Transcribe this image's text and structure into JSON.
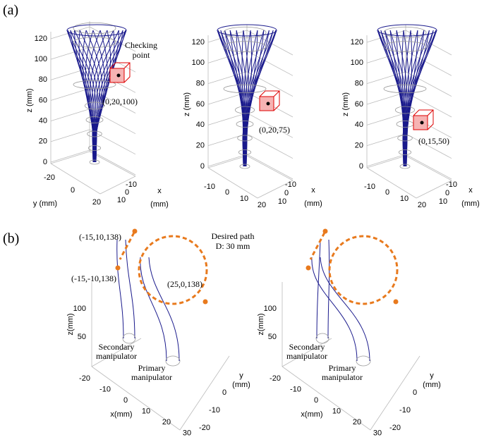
{
  "labels": {
    "a": "(a)",
    "b": "(b)"
  },
  "panel_a": [
    {
      "z_label": "z (mm)",
      "z_ticks": [
        "0",
        "20",
        "40",
        "60",
        "80",
        "100",
        "120"
      ],
      "y_label": "y (mm)",
      "y_ticks": [
        "-20",
        "0",
        "20"
      ],
      "x_label": "x",
      "x_unit": "(mm)",
      "x_ticks": [
        "-10",
        "0",
        "10"
      ],
      "note": [
        "Checking",
        "point"
      ],
      "point": "(0,20,100)"
    },
    {
      "z_label": "z (mm)",
      "z_ticks": [
        "0",
        "20",
        "40",
        "60",
        "80",
        "100",
        "120"
      ],
      "y_ticks": [
        "-10",
        "0",
        "10",
        "20"
      ],
      "x_label": "x",
      "x_unit": "(mm)",
      "x_ticks": [
        "-10",
        "0",
        "10"
      ],
      "point": "(0,20,75)"
    },
    {
      "z_label": "z (mm)",
      "z_ticks": [
        "0",
        "20",
        "40",
        "60",
        "80",
        "100",
        "120"
      ],
      "y_ticks": [
        "-10",
        "0",
        "10",
        "20"
      ],
      "x_label": "x",
      "x_unit": "(mm)",
      "x_ticks": [
        "-10",
        "0",
        "10"
      ],
      "point": "(0,15,50)"
    }
  ],
  "panel_b": [
    {
      "z_label": "z(mm)",
      "z_ticks": [
        "50",
        "100"
      ],
      "x_label": "x(mm)",
      "x_ticks": [
        "-20",
        "-10",
        "0",
        "10",
        "20",
        "30"
      ],
      "y_label": [
        "y",
        "(mm)"
      ],
      "y_ticks": [
        "0",
        "-10",
        "-20"
      ],
      "secondary": [
        "Secondary",
        "manipulator"
      ],
      "primary": [
        "Primary",
        "manipulator"
      ],
      "start_1": "(-15,10,138)",
      "start_2": "(-15,-10,138)",
      "path_title": "Desired path",
      "path_diameter": "D: 30 mm",
      "path_point": "(25,0,138)"
    },
    {
      "z_label": "z(mm)",
      "z_ticks": [
        "50",
        "100"
      ],
      "x_label": "x(mm)",
      "x_ticks": [
        "-20",
        "-10",
        "0",
        "10",
        "20",
        "30"
      ],
      "y_label": [
        "y",
        "(mm)"
      ],
      "y_ticks": [
        "0",
        "-10",
        "-20"
      ],
      "secondary": [
        "Secondary",
        "manipulator"
      ],
      "primary": [
        "Primary",
        "manipulator"
      ]
    }
  ]
}
